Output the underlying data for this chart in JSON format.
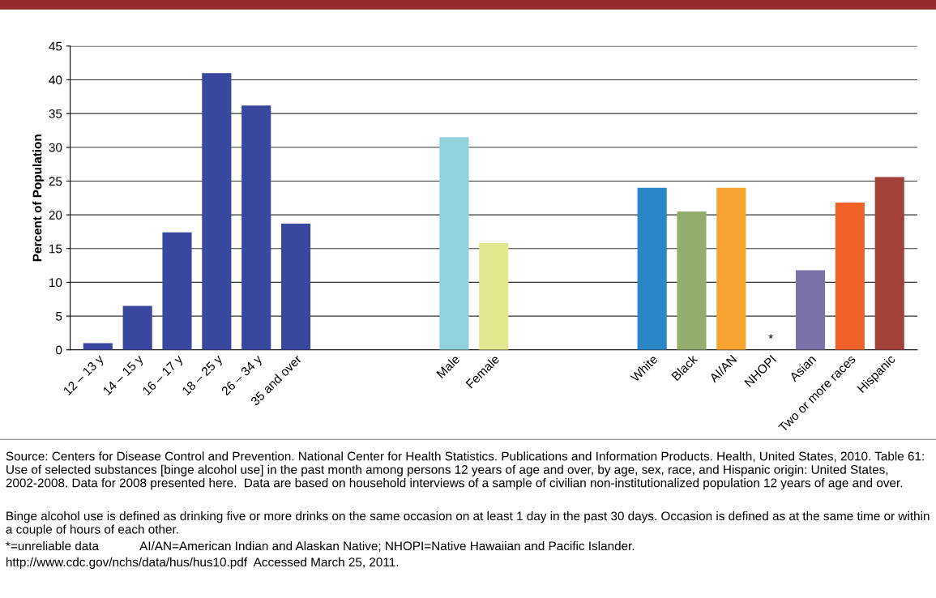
{
  "chart_data": {
    "type": "bar",
    "ylabel": "Percent of Population",
    "categories": [
      "12 – 13 y",
      "14 – 15 y",
      "16 – 17 y",
      "18 – 25 y",
      "26 – 34 y",
      "35 and over",
      null,
      null,
      null,
      "Male",
      "Female",
      null,
      null,
      null,
      "White",
      "Black",
      "AI/AN",
      "NHOPI",
      "Asian",
      "Two or more races",
      "Hispanic"
    ],
    "values": [
      1.0,
      6.5,
      17.4,
      41.0,
      36.2,
      18.7,
      null,
      null,
      null,
      31.5,
      15.8,
      null,
      null,
      null,
      24.0,
      20.5,
      24.0,
      null,
      11.8,
      21.8,
      25.6
    ],
    "colors": [
      "#3a479e",
      "#3a479e",
      "#3a479e",
      "#3a479e",
      "#3a479e",
      "#3a479e",
      "#ffffff",
      "#ffffff",
      "#ffffff",
      "#8fd4dc",
      "#e2e88e",
      "#ffffff",
      "#ffffff",
      "#ffffff",
      "#2a86c6",
      "#93ad6f",
      "#f6a330",
      "#ffffff",
      "#7d72a8",
      "#ef6228",
      "#a2403a"
    ],
    "value_labels": [
      null,
      null,
      null,
      null,
      null,
      null,
      null,
      null,
      null,
      null,
      null,
      null,
      null,
      null,
      null,
      null,
      null,
      "*",
      null,
      null,
      null
    ],
    "ylim": [
      0,
      45
    ],
    "yticks": [
      0,
      5,
      10,
      15,
      20,
      25,
      30,
      35,
      40,
      45
    ],
    "grid": "y",
    "annotations": [
      "Source: Centers for Disease Control and Prevention. National Center for Health Statistics. Publications and Information Products. Health, United States, 2010. Table 61: Use of selected substances [binge alcohol use] in the past month among persons 12 years of age and over, by age, sex, race, and Hispanic origin: United States, 2002-2008. Data for 2008 presented here.  Data are based on household interviews of a sample of civilian non-institutionalized population 12 years of age and over.",
      "Binge alcohol use is defined as drinking five or more drinks on the same occasion on at least 1 day in the past 30 days. Occasion is defined as at the same time or within a couple of hours of each other.",
      "*=unreliable data            AI/AN=American Indian and Alaskan Native; NHOPI=Native Hawaiian and Pacific Islander.",
      "http://www.cdc.gov/nchs/data/hus/hus10.pdf  Accessed March 25, 2011."
    ]
  }
}
